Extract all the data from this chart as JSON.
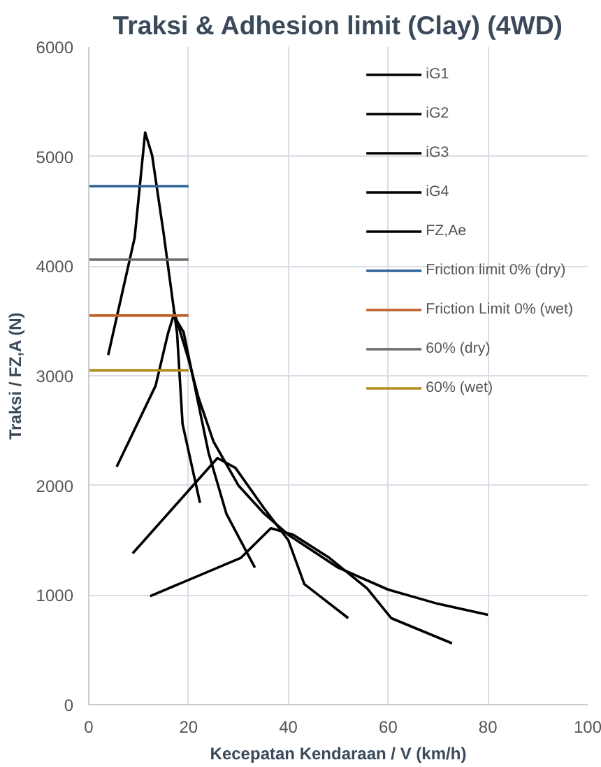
{
  "chart_data": {
    "type": "line",
    "title": "Traksi & Adhesion limit (Clay) (4WD)",
    "xlabel": "Kecepatan Kendaraan / V (km/h)",
    "ylabel": "Traksi / FZ,A (N)",
    "xlim": [
      0,
      100
    ],
    "xticks": [
      0,
      20,
      40,
      60,
      80,
      100
    ],
    "ylim": [
      0,
      6000
    ],
    "yticks": [
      0,
      1000,
      2000,
      3000,
      4000,
      5000,
      6000
    ],
    "grid": true,
    "legend": "top right",
    "marker": "none",
    "line_style": "solid",
    "series": [
      {
        "name": "iG1",
        "color": "#000000",
        "x": [
          3.9,
          9.2,
          11.3,
          12.7,
          15,
          17.7,
          18.8,
          22.3
        ],
        "values": [
          3190,
          4260,
          5220,
          5010,
          4300,
          3390,
          2560,
          1840
        ]
      },
      {
        "name": "iG2",
        "color": "#000000",
        "x": [
          5.6,
          13.4,
          15.9,
          17,
          19,
          24,
          27.6,
          33.3
        ],
        "values": [
          2170,
          2910,
          3390,
          3550,
          3400,
          2300,
          1740,
          1250
        ]
      },
      {
        "name": "iG3",
        "color": "#000000",
        "x": [
          8.8,
          25.8,
          29.4,
          35,
          40,
          43.2,
          52
        ],
        "values": [
          1380,
          2250,
          2160,
          1800,
          1500,
          1100,
          790
        ]
      },
      {
        "name": "iG4",
        "color": "#000000",
        "x": [
          12.3,
          30.5,
          36.5,
          41,
          48.2,
          55.8,
          60.6,
          72.8
        ],
        "values": [
          990,
          1340,
          1610,
          1550,
          1340,
          1060,
          790,
          560
        ]
      },
      {
        "name": "FZ,Ae",
        "color": "#000000",
        "x": [
          17,
          20,
          22,
          25,
          30,
          35,
          40,
          50,
          60,
          70,
          80
        ],
        "values": [
          3600,
          3150,
          2800,
          2400,
          2000,
          1750,
          1550,
          1250,
          1050,
          920,
          820
        ]
      },
      {
        "name": "Friction limit 0% (dry)",
        "color": "#2e6496",
        "x": [
          0,
          20
        ],
        "values": [
          4730,
          4730
        ]
      },
      {
        "name": "Friction Limit 0% (wet)",
        "color": "#c0622a",
        "x": [
          0,
          20
        ],
        "values": [
          3550,
          3550
        ]
      },
      {
        "name": "60% (dry)",
        "color": "#6b6b6b",
        "x": [
          0,
          20
        ],
        "values": [
          4060,
          4060
        ]
      },
      {
        "name": "60% (wet)",
        "color": "#b38b1e",
        "x": [
          0,
          20
        ],
        "values": [
          3050,
          3050
        ]
      }
    ]
  }
}
